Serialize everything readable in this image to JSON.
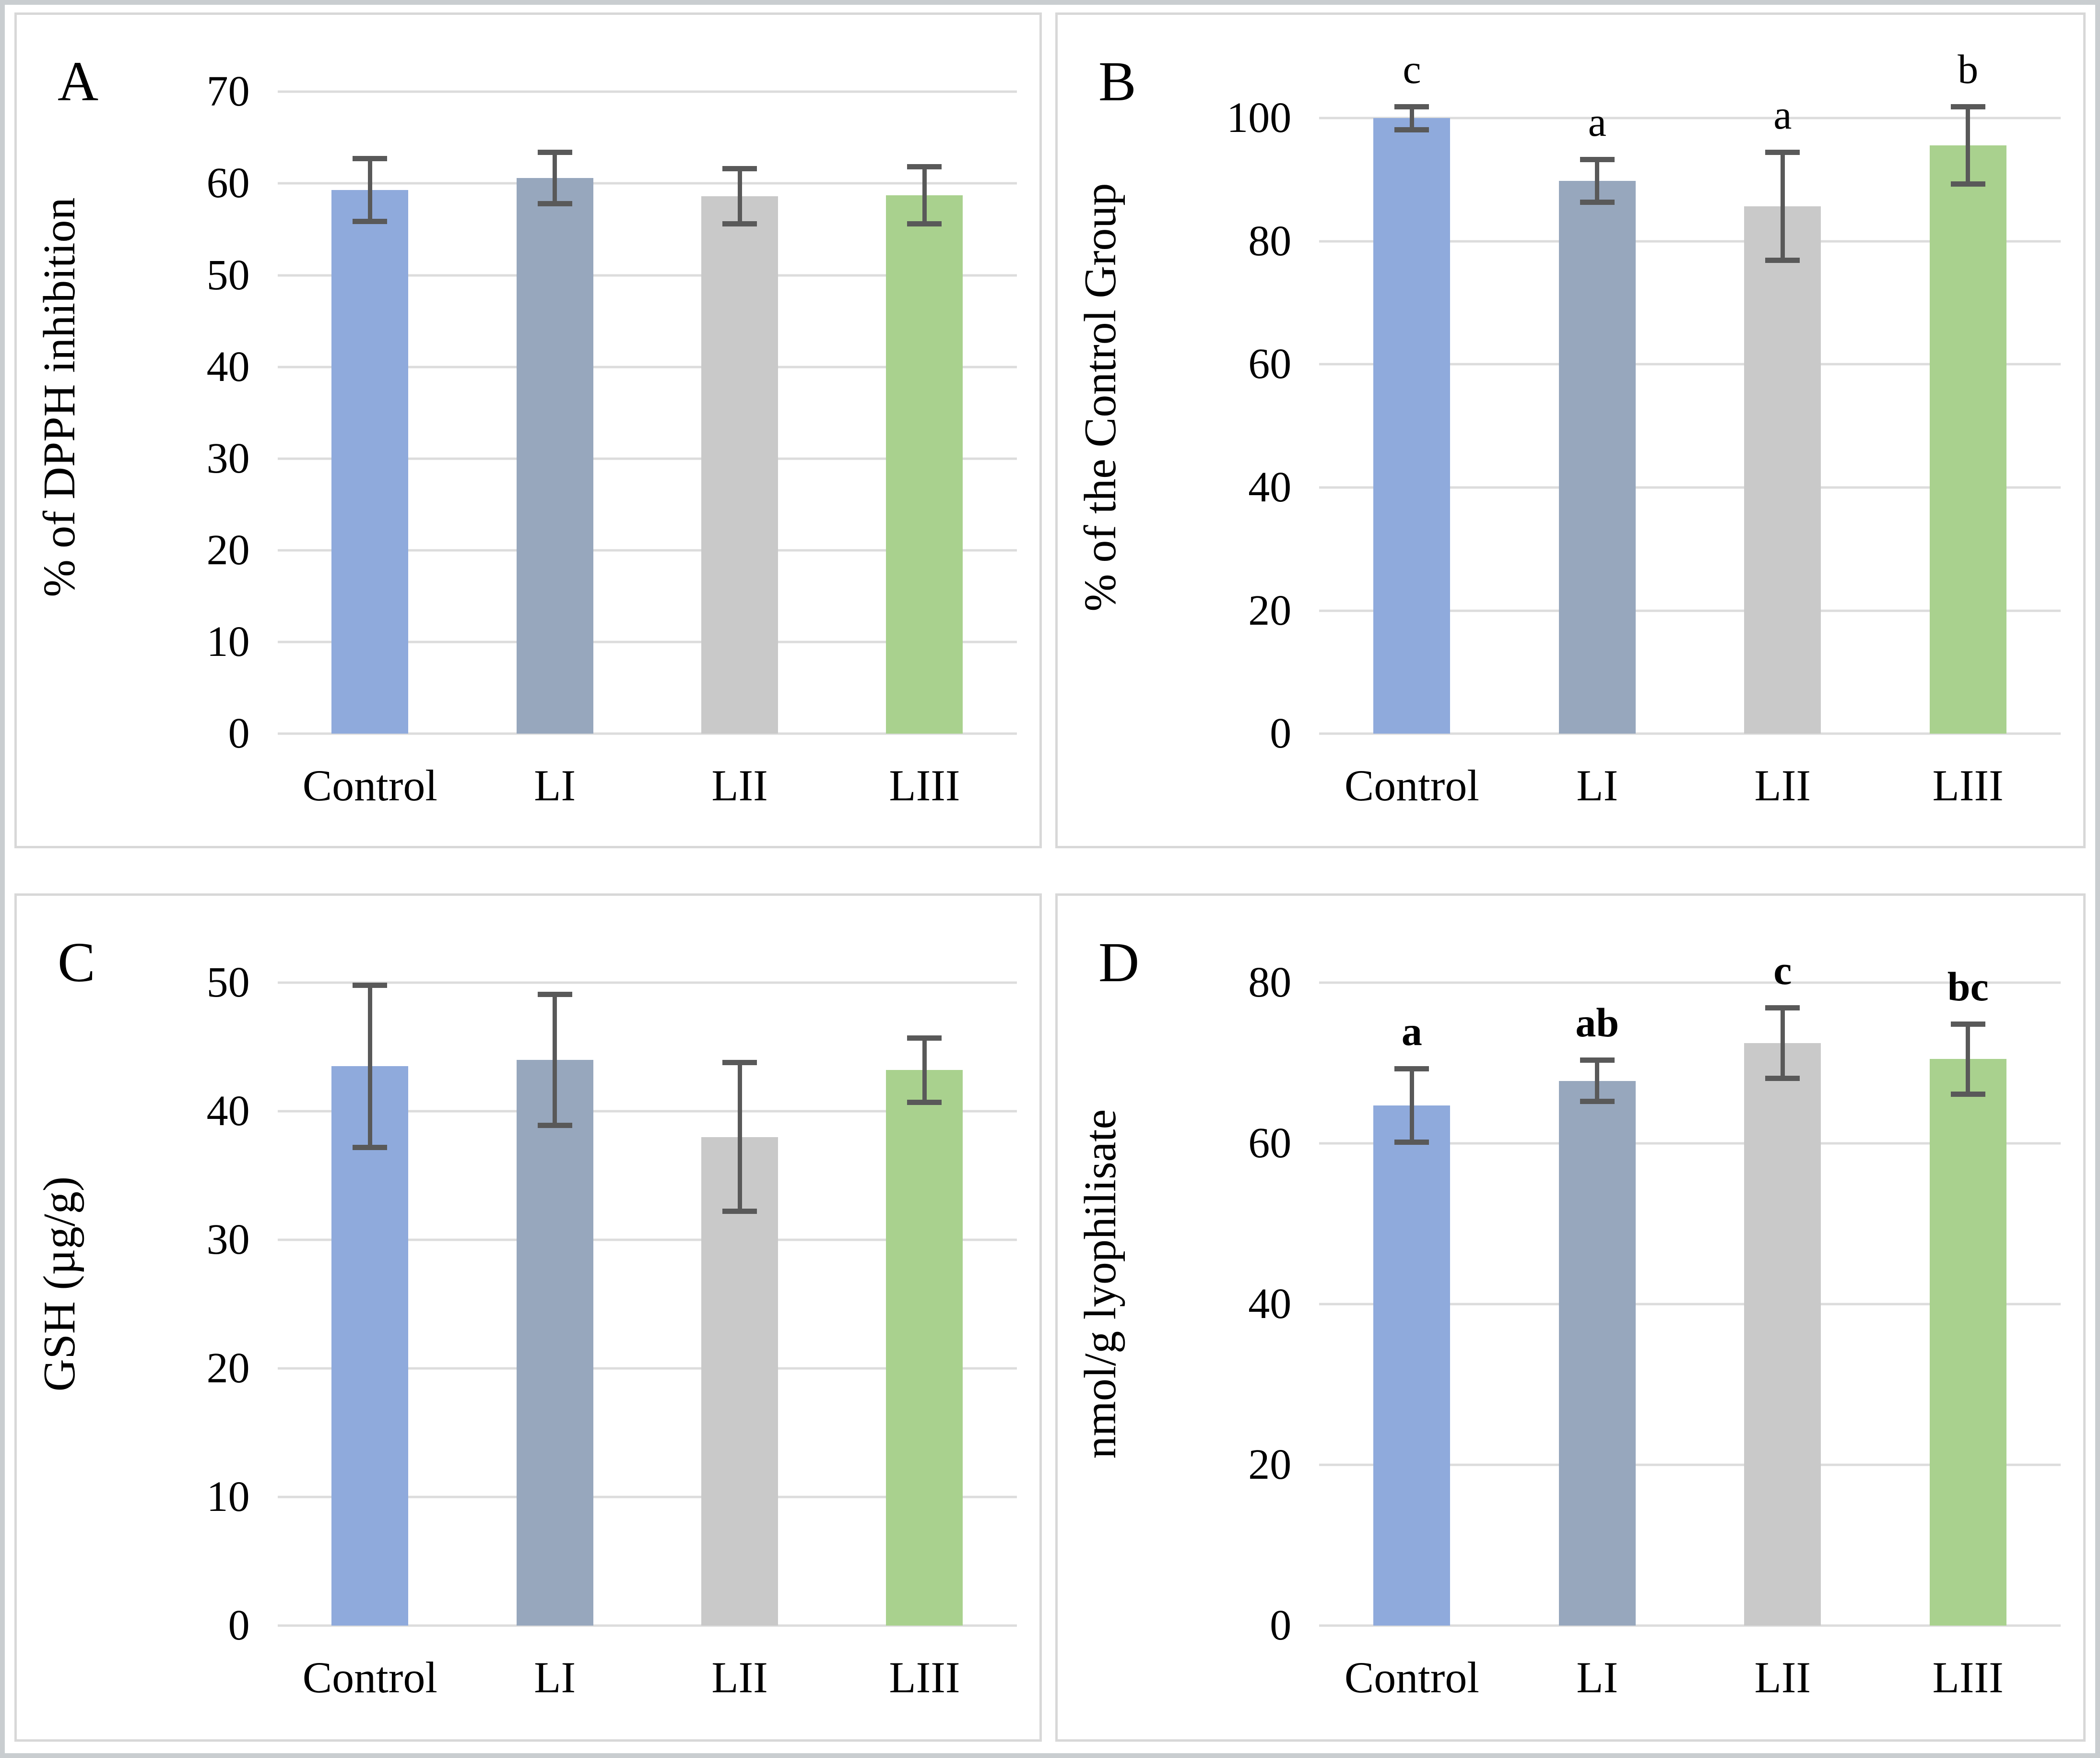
{
  "palette": {
    "bar_colors": [
      "#8FAADC",
      "#97A7BD",
      "#C9C9C9",
      "#A9D18E"
    ],
    "error_bar_color": "#595959",
    "gridline_color": "#DCDCDC",
    "panel_border_color": "#D8D8D8",
    "outer_border_color": "#C9CDD0",
    "text_color": "#000000"
  },
  "chart_data": [
    {
      "type": "bar",
      "panel_letter": "A",
      "ylabel": "% of DPPH inhibition",
      "xlabel": "",
      "categories": [
        "Control",
        "LI",
        "LII",
        "LIII"
      ],
      "values": [
        59.3,
        60.6,
        58.6,
        58.7
      ],
      "errors": [
        3.7,
        3.1,
        3.3,
        3.4
      ],
      "sig_letters": [
        "",
        "",
        "",
        ""
      ],
      "letters_bold": false,
      "yticks": [
        0,
        10,
        20,
        30,
        40,
        50,
        60,
        70
      ],
      "ylim": [
        0,
        72.5
      ],
      "grid": true,
      "legend": "none"
    },
    {
      "type": "bar",
      "panel_letter": "B",
      "ylabel": "% of the Control Group",
      "xlabel": "",
      "categories": [
        "Control",
        "LI",
        "LII",
        "LIII"
      ],
      "values": [
        100.0,
        89.8,
        85.7,
        95.6
      ],
      "errors": [
        2.3,
        3.9,
        9.2,
        6.7
      ],
      "sig_letters": [
        "c",
        "a",
        "a",
        "b"
      ],
      "letters_bold": false,
      "yticks": [
        0,
        20,
        40,
        60,
        80,
        100
      ],
      "ylim": [
        0,
        108
      ],
      "grid": true,
      "legend": "none"
    },
    {
      "type": "bar",
      "panel_letter": "C",
      "ylabel": "GSH (µg/g)",
      "xlabel": "",
      "categories": [
        "Control",
        "LI",
        "LII",
        "LIII"
      ],
      "values": [
        43.5,
        44.0,
        38.0,
        43.2
      ],
      "errors": [
        6.5,
        5.3,
        6.0,
        2.7
      ],
      "sig_letters": [
        "",
        "",
        "",
        ""
      ],
      "letters_bold": false,
      "yticks": [
        0,
        10,
        20,
        30,
        40,
        50
      ],
      "ylim": [
        0,
        52.5
      ],
      "grid": true,
      "legend": "none"
    },
    {
      "type": "bar",
      "panel_letter": "D",
      "ylabel": "nmol/g lyophilisate",
      "xlabel": "",
      "categories": [
        "Control",
        "LI",
        "LII",
        "LIII"
      ],
      "values": [
        64.7,
        67.8,
        72.5,
        70.5
      ],
      "errors": [
        4.9,
        2.9,
        4.7,
        4.7
      ],
      "sig_letters": [
        "a",
        "ab",
        "c",
        "bc"
      ],
      "letters_bold": true,
      "yticks": [
        0,
        20,
        40,
        60,
        80
      ],
      "ylim": [
        0,
        84
      ],
      "grid": true,
      "legend": "none"
    }
  ]
}
